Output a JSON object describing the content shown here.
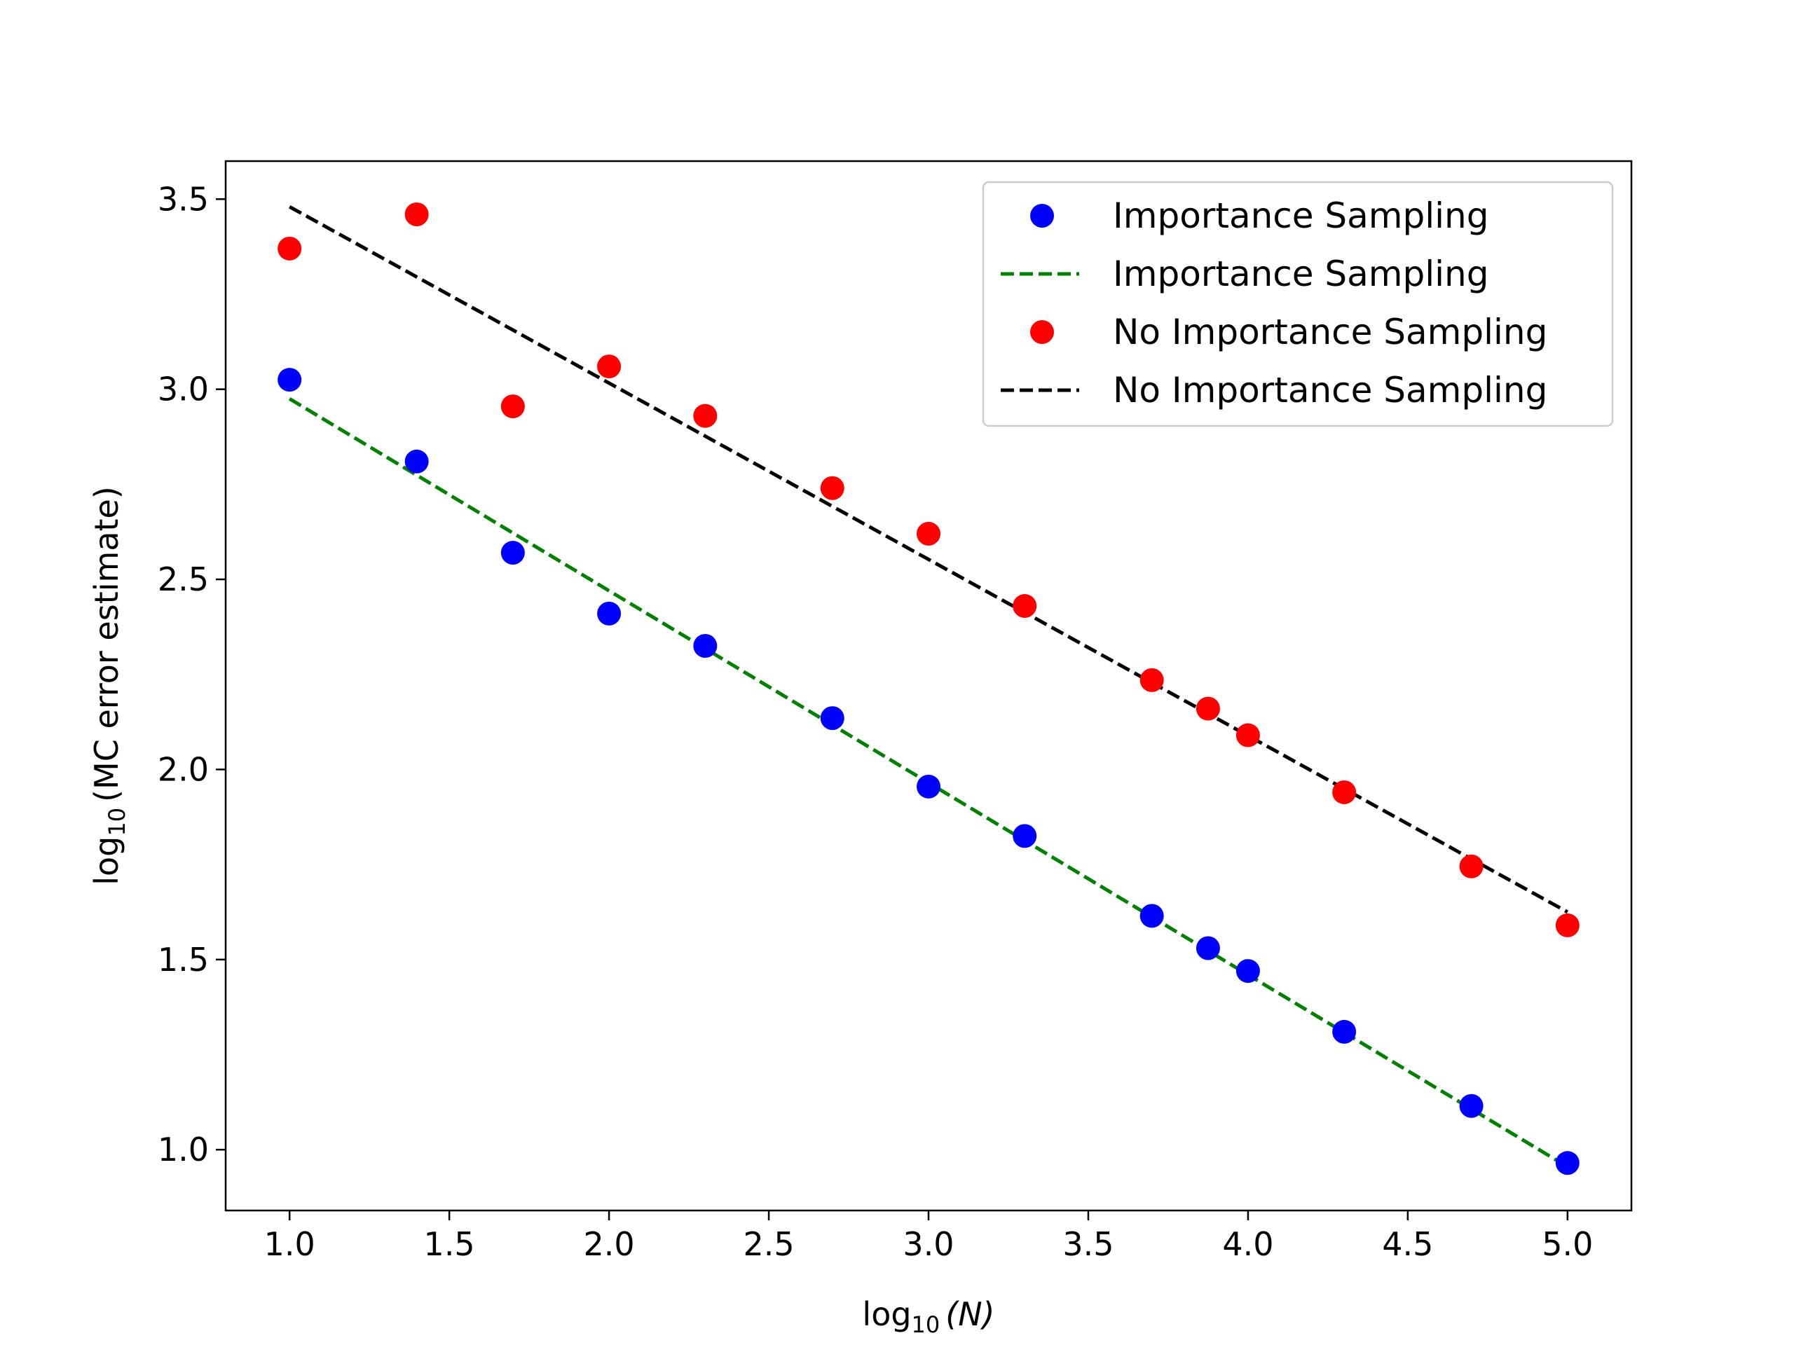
{
  "chart_data": {
    "type": "scatter",
    "xlabel": {
      "prefix": "log",
      "sub": "10",
      "suffix": "(N)"
    },
    "ylabel": {
      "prefix": "log",
      "sub": "10",
      "suffix": "(MC error estimate)"
    },
    "xlim": [
      0.8,
      5.2
    ],
    "ylim": [
      0.84,
      3.6
    ],
    "x_ticks": [
      "1.0",
      "1.5",
      "2.0",
      "2.5",
      "3.0",
      "3.5",
      "4.0",
      "4.5",
      "5.0"
    ],
    "y_ticks": [
      "1.0",
      "1.5",
      "2.0",
      "2.5",
      "3.0",
      "3.5"
    ],
    "grid": false,
    "legend_position": "top-right",
    "series": [
      {
        "name": "Importance Sampling",
        "kind": "points",
        "color": "#0000ff",
        "x": [
          1.0,
          1.398,
          1.699,
          2.0,
          2.301,
          2.699,
          3.0,
          3.301,
          3.699,
          3.875,
          4.0,
          4.301,
          4.699,
          5.0
        ],
        "y": [
          3.025,
          2.81,
          2.57,
          2.41,
          2.325,
          2.135,
          1.955,
          1.825,
          1.615,
          1.53,
          1.47,
          1.31,
          1.115,
          0.965
        ]
      },
      {
        "name": "Importance Sampling",
        "kind": "dashed-line",
        "color": "#008000",
        "x": [
          1.0,
          5.0
        ],
        "y": [
          2.975,
          0.955
        ]
      },
      {
        "name": "No Importance Sampling",
        "kind": "points",
        "color": "#ff0000",
        "x": [
          1.0,
          1.398,
          1.699,
          2.0,
          2.301,
          2.699,
          3.0,
          3.301,
          3.699,
          3.875,
          4.0,
          4.301,
          4.699,
          5.0
        ],
        "y": [
          3.37,
          3.46,
          2.955,
          3.06,
          2.93,
          2.74,
          2.62,
          2.43,
          2.235,
          2.16,
          2.09,
          1.94,
          1.745,
          1.59
        ]
      },
      {
        "name": "No Importance Sampling",
        "kind": "dashed-line",
        "color": "#000000",
        "x": [
          1.0,
          5.0
        ],
        "y": [
          3.48,
          1.625
        ]
      }
    ]
  }
}
